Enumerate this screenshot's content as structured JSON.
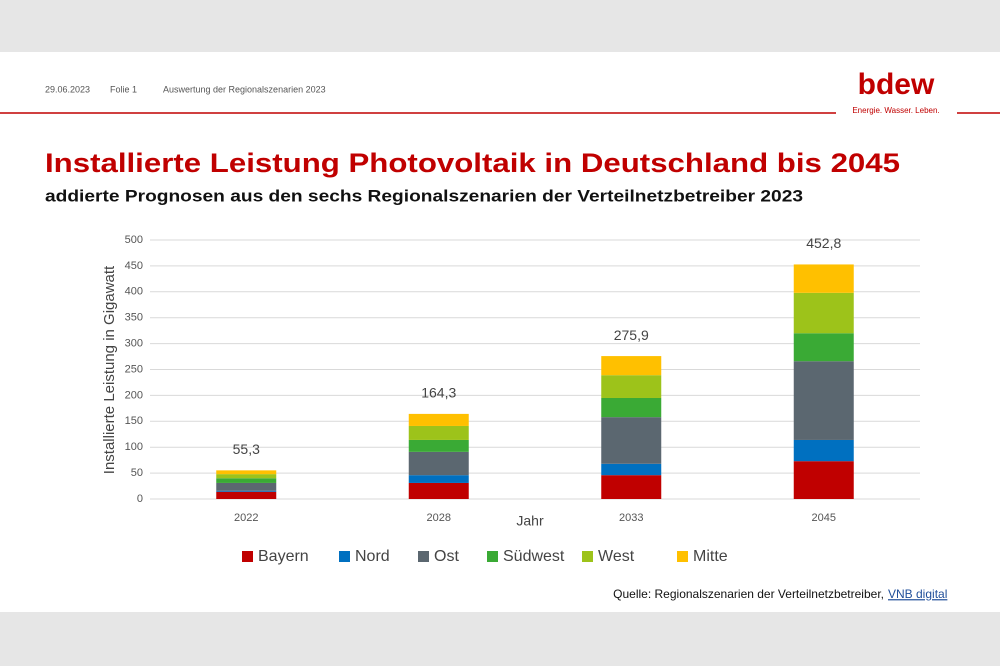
{
  "header": {
    "date": "29.06.2023",
    "slide": "Folie 1",
    "subject": "Auswertung der Regionalszenarien 2023"
  },
  "logo": {
    "name": "bdew",
    "tagline": "Energie. Wasser. Leben."
  },
  "chart_data": {
    "type": "stacked-bar",
    "title": "Installierte Leistung Photovoltaik in Deutschland bis 2045",
    "subtitle": "addierte Prognosen aus den sechs Regionalszenarien der Verteilnetzbetreiber 2023",
    "x_label": "Jahr",
    "y_label": "Installierte Leistung in Gigawatt",
    "categories": [
      "2022",
      "2028",
      "2033",
      "2045"
    ],
    "series": [
      {
        "name": "Bayern",
        "color": "#c00000",
        "values": [
          14,
          31,
          46,
          73
        ]
      },
      {
        "name": "Nord",
        "color": "#0070c0",
        "values": [
          2,
          15,
          22,
          41
        ]
      },
      {
        "name": "Ost",
        "color": "#5b6770",
        "values": [
          15,
          45,
          90,
          152
        ]
      },
      {
        "name": "Südwest",
        "color": "#3aaa35",
        "values": [
          9,
          23,
          37,
          54
        ]
      },
      {
        "name": "West",
        "color": "#9dc31a",
        "values": [
          8,
          27,
          44,
          78
        ]
      },
      {
        "name": "Mitte",
        "color": "#ffc000",
        "values": [
          7.3,
          23.3,
          36.9,
          54.8
        ]
      }
    ],
    "totals": [
      55.3,
      164.3,
      275.9,
      452.8
    ],
    "total_labels": [
      "55,3",
      "164,3",
      "275,9",
      "452,8"
    ],
    "ylim": [
      0,
      500
    ],
    "yticks": [
      0,
      50,
      100,
      150,
      200,
      250,
      300,
      350,
      400,
      450,
      500
    ],
    "grid": true
  },
  "source": {
    "text": "Quelle: Regionalszenarien der Verteilnetzbetreiber,",
    "link": "VNB digital"
  }
}
